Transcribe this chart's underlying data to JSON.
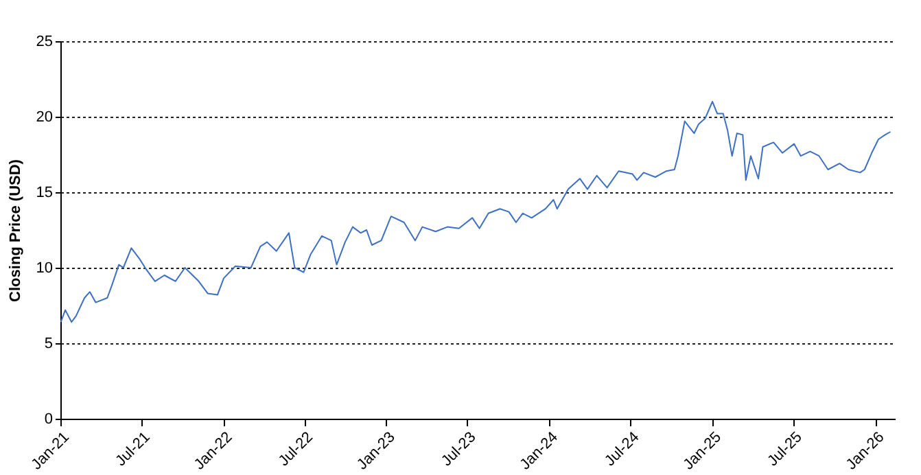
{
  "chart_data": {
    "type": "line",
    "ylabel": "Closing Price (USD)",
    "x": [
      "2021-01-02",
      "2021-01-12",
      "2021-01-26",
      "2021-02-05",
      "2021-02-24",
      "2021-03-08",
      "2021-03-21",
      "2021-04-16",
      "2021-04-26",
      "2021-05-12",
      "2021-05-22",
      "2021-06-09",
      "2021-06-27",
      "2021-07-12",
      "2021-08-01",
      "2021-08-22",
      "2021-09-16",
      "2021-10-07",
      "2021-11-07",
      "2021-11-27",
      "2021-12-19",
      "2022-01-02",
      "2022-01-28",
      "2022-03-04",
      "2022-03-25",
      "2022-04-09",
      "2022-04-30",
      "2022-05-28",
      "2022-06-10",
      "2022-06-30",
      "2022-07-16",
      "2022-08-10",
      "2022-08-31",
      "2022-09-12",
      "2022-10-01",
      "2022-10-18",
      "2022-11-05",
      "2022-11-18",
      "2022-11-30",
      "2022-12-21",
      "2023-01-12",
      "2023-02-10",
      "2023-03-07",
      "2023-03-23",
      "2023-04-22",
      "2023-05-18",
      "2023-06-13",
      "2023-07-13",
      "2023-07-29",
      "2023-08-18",
      "2023-09-13",
      "2023-10-03",
      "2023-10-19",
      "2023-11-03",
      "2023-11-23",
      "2023-12-24",
      "2024-01-11",
      "2024-01-19",
      "2024-02-13",
      "2024-03-10",
      "2024-03-27",
      "2024-04-17",
      "2024-05-10",
      "2024-06-05",
      "2024-07-06",
      "2024-07-16",
      "2024-07-31",
      "2024-08-26",
      "2024-09-20",
      "2024-10-08",
      "2024-10-16",
      "2024-10-31",
      "2024-11-21",
      "2024-12-01",
      "2024-12-16",
      "2025-01-01",
      "2025-01-12",
      "2025-01-25",
      "2025-02-04",
      "2025-02-14",
      "2025-02-25",
      "2025-03-10",
      "2025-03-17",
      "2025-03-28",
      "2025-04-14",
      "2025-04-24",
      "2025-05-18",
      "2025-06-07",
      "2025-07-03",
      "2025-07-18",
      "2025-08-08",
      "2025-08-28",
      "2025-09-17",
      "2025-10-13",
      "2025-11-02",
      "2025-11-28",
      "2025-12-08",
      "2025-12-24",
      "2026-01-08",
      "2026-01-23",
      "2026-02-04"
    ],
    "series": [
      {
        "color": "#3d6fc2",
        "values": [
          6.4,
          7.2,
          6.4,
          6.8,
          8.0,
          8.4,
          7.7,
          8.0,
          8.8,
          10.2,
          10.0,
          11.3,
          10.6,
          9.9,
          9.1,
          9.5,
          9.1,
          10.0,
          9.1,
          8.3,
          8.2,
          9.3,
          10.1,
          10.0,
          11.4,
          11.7,
          11.1,
          12.3,
          10.0,
          9.7,
          10.9,
          12.1,
          11.8,
          10.2,
          11.7,
          12.7,
          12.3,
          12.5,
          11.5,
          11.8,
          13.4,
          13.0,
          11.8,
          12.7,
          12.4,
          12.7,
          12.6,
          13.3,
          12.6,
          13.6,
          13.9,
          13.7,
          13.0,
          13.6,
          13.3,
          13.9,
          14.5,
          13.9,
          15.2,
          15.9,
          15.2,
          16.1,
          15.3,
          16.4,
          16.2,
          15.8,
          16.3,
          16.0,
          16.4,
          16.5,
          17.4,
          19.7,
          18.9,
          19.5,
          19.9,
          21.0,
          20.2,
          20.2,
          19.1,
          17.4,
          18.9,
          18.8,
          15.8,
          17.4,
          15.9,
          18.0,
          18.3,
          17.6,
          18.2,
          17.4,
          17.7,
          17.4,
          16.5,
          16.9,
          16.5,
          16.3,
          16.5,
          17.6,
          18.5,
          18.8,
          19.0
        ]
      }
    ],
    "xlim": [
      "2021-01-01",
      "2026-02-14"
    ],
    "xticks": [
      {
        "value": "2021-01-01",
        "label": "Jan-21"
      },
      {
        "value": "2021-07-01",
        "label": "Jul-21"
      },
      {
        "value": "2022-01-01",
        "label": "Jan-22"
      },
      {
        "value": "2022-07-01",
        "label": "Jul-22"
      },
      {
        "value": "2023-01-01",
        "label": "Jan-23"
      },
      {
        "value": "2023-07-01",
        "label": "Jul-23"
      },
      {
        "value": "2024-01-01",
        "label": "Jan-24"
      },
      {
        "value": "2024-07-01",
        "label": "Jul-24"
      },
      {
        "value": "2025-01-01",
        "label": "Jan-25"
      },
      {
        "value": "2025-07-01",
        "label": "Jul-25"
      },
      {
        "value": "2026-01-01",
        "label": "Jan-26"
      }
    ],
    "ylim": [
      0,
      25
    ],
    "yticks": [
      0,
      5,
      10,
      15,
      20,
      25
    ],
    "grid": "y"
  }
}
